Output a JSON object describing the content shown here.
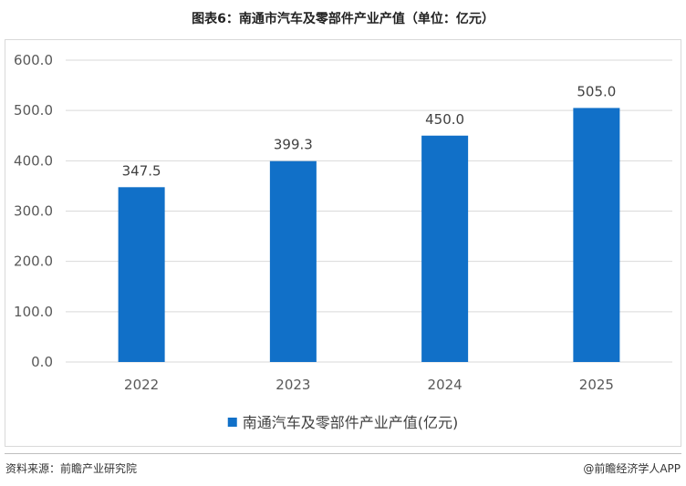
{
  "header": {
    "title": "图表6：南通市汽车及零部件产业产值（单位：亿元）"
  },
  "footer": {
    "source": "资料来源：前瞻产业研究院",
    "brand": "@前瞻经济学人APP"
  },
  "colors": {
    "bar": "#1170c8",
    "grid": "#d9d9d9",
    "axis_text": "#595959"
  },
  "chart_data": {
    "type": "bar",
    "categories": [
      "2022",
      "2023",
      "2024",
      "2025"
    ],
    "series": [
      {
        "name": "南通汽车及零部件产业产值(亿元)",
        "values": [
          347.5,
          399.3,
          450.0,
          505.0
        ],
        "labels": [
          "347.5",
          "399.3",
          "450.0",
          "505.0"
        ]
      }
    ],
    "yticks": [
      "0.0",
      "100.0",
      "200.0",
      "300.0",
      "400.0",
      "500.0",
      "600.0"
    ],
    "ylim": [
      0,
      600
    ],
    "grid": true,
    "legend": "bottom-center",
    "title": "图表6：南通市汽车及零部件产业产值（单位：亿元）",
    "xlabel": "",
    "ylabel": ""
  }
}
